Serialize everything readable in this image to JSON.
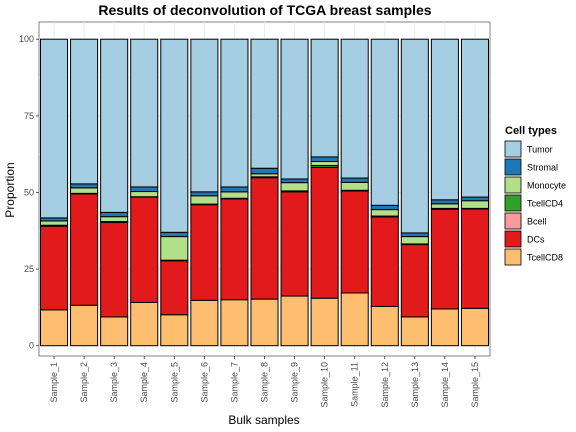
{
  "chart_data": {
    "type": "bar",
    "stacked": true,
    "title": "Results of deconvolution of TCGA breast samples",
    "xlabel": "Bulk samples",
    "ylabel": "Proportion",
    "ylim": [
      0,
      100
    ],
    "yticks": [
      0,
      25,
      50,
      75,
      100
    ],
    "grid": true,
    "legend_title": "Cell types",
    "legend_position": "right",
    "categories": [
      "Sample_1",
      "Sample_2",
      "Sample_3",
      "Sample_4",
      "Sample_5",
      "Sample_6",
      "Sample_7",
      "Sample_8",
      "Sample_9",
      "Sample_10",
      "Sample_11",
      "Sample_12",
      "Sample_13",
      "Sample_14",
      "Sample_15"
    ],
    "series": [
      {
        "name": "TcellCD8",
        "color": "#FDBF6F",
        "values": [
          11.7,
          13.2,
          9.4,
          14.1,
          10.1,
          14.8,
          15.0,
          15.2,
          16.2,
          15.5,
          17.2,
          12.8,
          9.4,
          12.0,
          12.2
        ]
      },
      {
        "name": "DCs",
        "color": "#E31A1C",
        "values": [
          27.3,
          36.3,
          30.8,
          34.4,
          17.6,
          31.2,
          32.9,
          39.6,
          34.0,
          42.7,
          33.3,
          29.2,
          23.6,
          32.5,
          32.4
        ]
      },
      {
        "name": "Bcell",
        "color": "#FB9A99",
        "values": [
          0,
          0,
          0,
          0,
          0,
          0,
          0,
          0,
          0,
          0,
          0,
          0,
          0,
          0,
          0
        ]
      },
      {
        "name": "TcellCD4",
        "color": "#33A02C",
        "values": [
          0.3,
          0.2,
          0.3,
          0.1,
          0.2,
          0.2,
          0.2,
          0.3,
          0.3,
          0.6,
          0.2,
          0.3,
          0.2,
          0.3,
          0.2
        ]
      },
      {
        "name": "Monocyte",
        "color": "#B2DF8A",
        "values": [
          1.4,
          1.8,
          1.6,
          1.7,
          7.7,
          2.7,
          2.1,
          1.0,
          2.7,
          1.3,
          2.6,
          2.1,
          2.4,
          1.5,
          2.5
        ]
      },
      {
        "name": "Stromal",
        "color": "#1F78B4",
        "values": [
          1.0,
          1.3,
          1.4,
          1.5,
          1.4,
          1.3,
          1.6,
          1.8,
          1.2,
          1.5,
          1.4,
          1.4,
          1.2,
          1.3,
          1.2
        ]
      },
      {
        "name": "Tumor",
        "color": "#A6CEE3",
        "values": [
          58.3,
          47.2,
          56.5,
          48.2,
          63.0,
          49.8,
          48.2,
          42.1,
          45.6,
          38.4,
          45.3,
          54.2,
          63.2,
          52.4,
          51.5
        ]
      }
    ],
    "legend_order": [
      "Tumor",
      "Stromal",
      "Monocyte",
      "TcellCD4",
      "Bcell",
      "DCs",
      "TcellCD8"
    ]
  }
}
